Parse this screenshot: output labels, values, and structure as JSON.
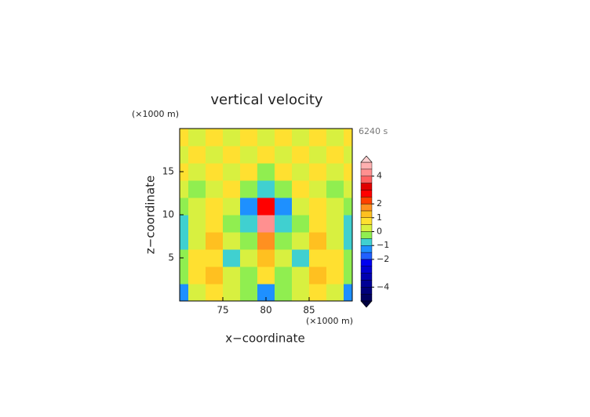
{
  "chart_data": {
    "type": "contour",
    "title": "vertical velocity",
    "x_label": "x−coordinate",
    "y_label": "z−coordinate",
    "x_unit": "(×1000 m)",
    "y_unit": "(×1000 m)",
    "annotation": "6240 s",
    "xlim": [
      70,
      90
    ],
    "ylim": [
      0,
      20
    ],
    "xticks": [
      75,
      80,
      85
    ],
    "yticks": [
      5,
      10,
      15
    ],
    "x": [
      70,
      72,
      74,
      76,
      78,
      80,
      82,
      84,
      86,
      88,
      90
    ],
    "z": [
      1,
      3,
      5,
      7,
      9,
      11,
      13,
      15,
      17,
      19
    ],
    "values": [
      [
        -1.2,
        0.3,
        0.6,
        0.3,
        -0.2,
        -1.1,
        -0.2,
        0.3,
        0.6,
        0.3,
        -1.2
      ],
      [
        -0.2,
        0.6,
        1.1,
        0.3,
        -0.2,
        0.6,
        -0.2,
        0.3,
        1.1,
        0.6,
        -0.2
      ],
      [
        -0.2,
        0.6,
        0.7,
        -0.6,
        0.3,
        1.2,
        0.3,
        -0.6,
        0.7,
        0.6,
        -0.2
      ],
      [
        -0.6,
        0.3,
        1.2,
        0.3,
        -0.2,
        1.8,
        -0.2,
        0.3,
        1.2,
        0.3,
        -0.6
      ],
      [
        -0.7,
        0.3,
        0.6,
        -0.2,
        -0.7,
        4.2,
        -0.7,
        -0.2,
        0.6,
        0.3,
        -0.7
      ],
      [
        -0.2,
        0.3,
        0.6,
        0.3,
        -1.2,
        2.8,
        -1.2,
        0.3,
        0.6,
        0.3,
        -0.2
      ],
      [
        0.3,
        -0.2,
        0.3,
        0.6,
        -0.2,
        -0.8,
        -0.2,
        0.6,
        0.3,
        -0.2,
        0.3
      ],
      [
        0.6,
        0.3,
        0.6,
        0.3,
        0.6,
        -0.2,
        0.6,
        0.3,
        0.6,
        0.3,
        0.6
      ],
      [
        0.3,
        0.6,
        0.3,
        0.6,
        0.3,
        0.6,
        0.3,
        0.6,
        0.3,
        0.6,
        0.3
      ],
      [
        0.6,
        0.3,
        0.6,
        0.3,
        0.6,
        0.3,
        0.6,
        0.3,
        0.6,
        0.3,
        0.6
      ]
    ],
    "levels": [
      -5,
      -4.5,
      -4,
      -3.5,
      -3,
      -2.5,
      -2,
      -1.5,
      -1,
      -0.5,
      0,
      0.5,
      1,
      1.5,
      2,
      2.5,
      3,
      3.5,
      4,
      4.5,
      5
    ],
    "colors": [
      "#000040",
      "#000060",
      "#00007a",
      "#000095",
      "#0000b0",
      "#0000d0",
      "#0000f0",
      "#2060ff",
      "#1e90ff",
      "#40d0d0",
      "#90ee50",
      "#d8f040",
      "#ffe030",
      "#ffc020",
      "#ff9020",
      "#ff4000",
      "#ff0000",
      "#e00000",
      "#ff6060",
      "#ff9090",
      "#ffb0b0",
      "#ffd0d0"
    ],
    "colorbar_ticks": [
      {
        "value": -4,
        "label": "−4"
      },
      {
        "value": -2,
        "label": "−2"
      },
      {
        "value": -1,
        "label": "−1"
      },
      0,
      1,
      2,
      4
    ]
  }
}
